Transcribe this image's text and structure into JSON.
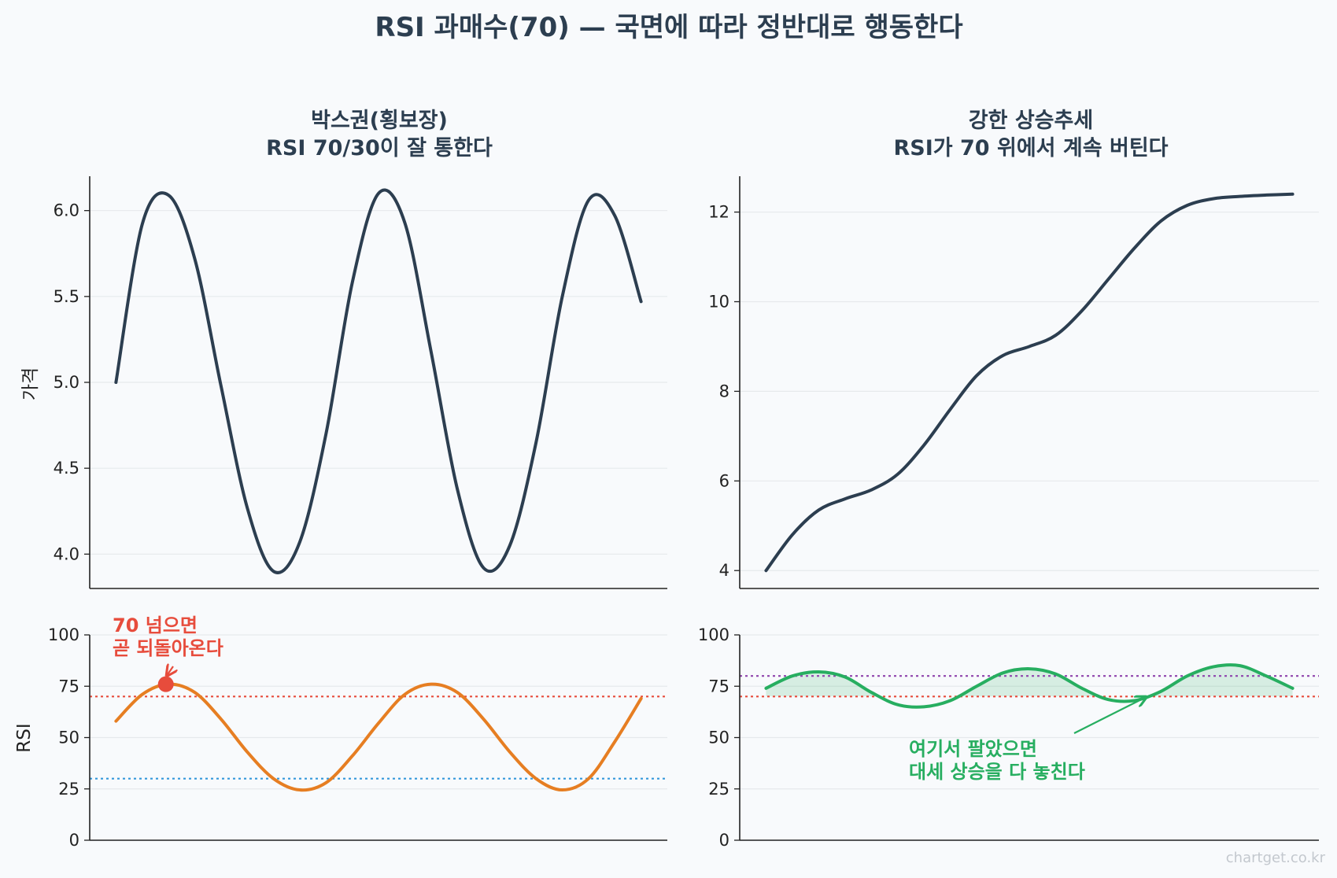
{
  "page": {
    "title": "RSI 과매수(70) — 국면에 따라 정반대로 행동한다",
    "watermark": "chartget.co.kr"
  },
  "colors": {
    "price": "#2c3e50",
    "rsi_range": "#e67e22",
    "rsi_trend": "#27ae60",
    "overbought_line": "#e74c3c",
    "oversold_line": "#3498db",
    "trend_upper_line": "#8e44ad",
    "fill_trend": "#27ae60",
    "grid": "#e6e9ec",
    "axis": "#222222"
  },
  "panels": {
    "range_price": {
      "title_line1": "박스권(횡보장)",
      "title_line2": "RSI 70/30이 잘 통한다",
      "ylabel": "가격",
      "yticks": [
        "4.0",
        "4.5",
        "5.0",
        "5.5",
        "6.0"
      ]
    },
    "trend_price": {
      "title_line1": "강한 상승추세",
      "title_line2": "RSI가 70 위에서 계속 버틴다",
      "yticks": [
        "4",
        "6",
        "8",
        "10",
        "12"
      ]
    },
    "range_rsi": {
      "ylabel": "RSI",
      "yticks": [
        "0",
        "25",
        "50",
        "75",
        "100"
      ],
      "annotation_line1": "70 넘으면",
      "annotation_line2": "곧 되돌아온다"
    },
    "trend_rsi": {
      "yticks": [
        "0",
        "25",
        "50",
        "75",
        "100"
      ],
      "annotation_line1": "여기서 팔았으면",
      "annotation_line2": "대세 상승을 다 놓친다"
    }
  },
  "chart_data": [
    {
      "type": "line",
      "panel": "range_price",
      "x": [
        0,
        0.05,
        0.1,
        0.15,
        0.2,
        0.25,
        0.3,
        0.35,
        0.4,
        0.45,
        0.5,
        0.55,
        0.6,
        0.65,
        0.7,
        0.75,
        0.8,
        0.85,
        0.9,
        0.95,
        1.0
      ],
      "series": [
        {
          "values": [
            5.0,
            5.92,
            6.09,
            5.72,
            4.98,
            4.27,
            3.9,
            4.07,
            4.7,
            5.58,
            6.1,
            5.93,
            5.18,
            4.38,
            3.92,
            4.05,
            4.65,
            5.5,
            6.06,
            5.97,
            5.47
          ]
        }
      ],
      "ylim": [
        3.8,
        6.2
      ],
      "xlim": [
        -0.05,
        1.05
      ],
      "grid": true
    },
    {
      "type": "line",
      "panel": "trend_price",
      "x": [
        0,
        0.05,
        0.1,
        0.15,
        0.2,
        0.25,
        0.3,
        0.35,
        0.4,
        0.45,
        0.5,
        0.55,
        0.6,
        0.65,
        0.7,
        0.75,
        0.8,
        0.85,
        0.9,
        0.95,
        1.0
      ],
      "series": [
        {
          "values": [
            4.0,
            4.8,
            5.35,
            5.6,
            5.8,
            6.15,
            6.8,
            7.6,
            8.35,
            8.8,
            9.0,
            9.25,
            9.8,
            10.5,
            11.2,
            11.8,
            12.15,
            12.3,
            12.35,
            12.38,
            12.4
          ]
        }
      ],
      "ylim": [
        3.6,
        12.8
      ],
      "xlim": [
        -0.05,
        1.05
      ],
      "grid": true
    },
    {
      "type": "line",
      "panel": "range_rsi",
      "x": [
        0,
        0.05,
        0.1,
        0.15,
        0.2,
        0.25,
        0.3,
        0.35,
        0.4,
        0.45,
        0.5,
        0.55,
        0.6,
        0.65,
        0.7,
        0.75,
        0.8,
        0.85,
        0.9,
        0.95,
        1.0
      ],
      "series": [
        {
          "values": [
            58,
            71,
            76,
            72,
            59,
            43,
            30,
            24.5,
            28,
            41,
            57,
            71,
            76,
            72,
            59,
            43,
            30,
            24.5,
            30,
            48,
            69
          ]
        }
      ],
      "reference_lines": [
        {
          "y": 70,
          "color": "#e74c3c"
        },
        {
          "y": 30,
          "color": "#3498db"
        }
      ],
      "highlight_point": {
        "x": 0.095,
        "y": 76
      },
      "ylim": [
        0,
        100
      ],
      "xlim": [
        -0.05,
        1.05
      ],
      "grid": true
    },
    {
      "type": "area",
      "panel": "trend_rsi",
      "x": [
        0,
        0.05,
        0.1,
        0.15,
        0.2,
        0.25,
        0.3,
        0.35,
        0.4,
        0.45,
        0.5,
        0.55,
        0.6,
        0.65,
        0.7,
        0.75,
        0.8,
        0.85,
        0.9,
        0.95,
        1.0
      ],
      "series": [
        {
          "values": [
            74,
            80,
            82,
            79.5,
            72,
            66,
            65,
            68,
            75,
            81.5,
            83.5,
            81,
            74,
            68.5,
            68,
            72.5,
            80,
            84.5,
            85,
            80,
            74
          ]
        }
      ],
      "fill_baseline": 70,
      "reference_lines": [
        {
          "y": 80,
          "color": "#8e44ad"
        },
        {
          "y": 70,
          "color": "#e74c3c"
        }
      ],
      "ylim": [
        0,
        100
      ],
      "xlim": [
        -0.05,
        1.05
      ],
      "grid": true
    }
  ]
}
